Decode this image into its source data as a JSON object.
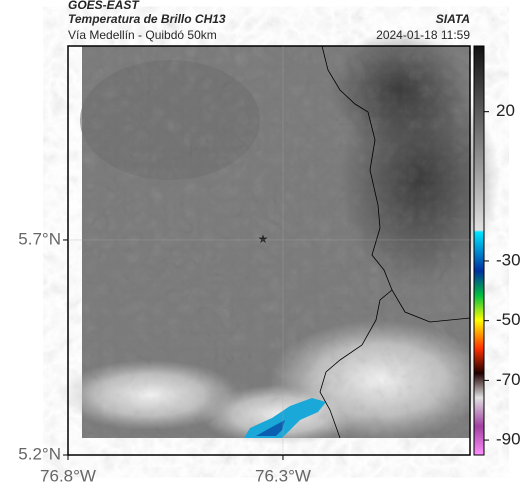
{
  "header": {
    "product": "GOES-EAST",
    "title": "Temperatura de Brillo CH13",
    "source": "SIATA",
    "subtitle": "Vía Medellín - Quibdó 50km",
    "timestamp": "2024-01-18 11:59"
  },
  "map": {
    "xlim": [
      -76.8,
      -75.865
    ],
    "ylim": [
      5.2,
      6.151
    ],
    "xticks": [
      {
        "value": -76.8,
        "label": "76.8°W"
      },
      {
        "value": -76.3,
        "label": "76.3°W"
      }
    ],
    "yticks": [
      {
        "value": 5.2,
        "label": "5.2°N"
      },
      {
        "value": 5.7,
        "label": "5.7°N"
      }
    ]
  },
  "colorbar": {
    "lim": [
      -95,
      42
    ],
    "ticks": [
      20,
      -30,
      -50,
      -70,
      -90
    ]
  }
}
